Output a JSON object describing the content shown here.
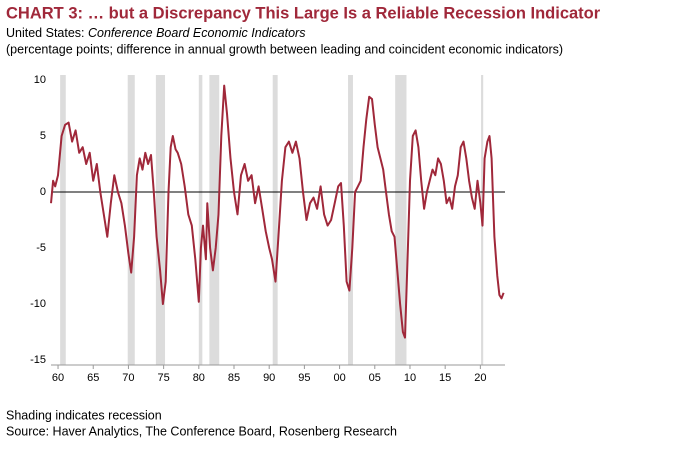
{
  "chart_data": {
    "type": "line",
    "title": "CHART 3: … but a Discrepancy This Large Is a Reliable Recession Indicator",
    "subtitle": "United States:",
    "subtitle_italic": "Conference Board Economic Indicators",
    "unit_note": "(percentage points; difference in annual growth between leading and coincident economic indicators)",
    "notes": [
      "Shading indicates recession",
      "Source: Haver Analytics, The Conference Board, Rosenberg Research"
    ],
    "recession_color": "#dcdcdc",
    "recessions": [
      [
        1960.3,
        1961.1
      ],
      [
        1969.9,
        1970.9
      ],
      [
        1973.9,
        1975.2
      ],
      [
        1980.0,
        1980.5
      ],
      [
        1981.5,
        1982.9
      ],
      [
        1990.5,
        1991.2
      ],
      [
        2001.2,
        2001.9
      ],
      [
        2007.9,
        2009.5
      ],
      [
        2020.1,
        2020.4
      ]
    ],
    "xlim": [
      1959,
      2023.5
    ],
    "xticks": [
      {
        "value": 1960,
        "label": "60"
      },
      {
        "value": 1965,
        "label": "65"
      },
      {
        "value": 1970,
        "label": "70"
      },
      {
        "value": 1975,
        "label": "75"
      },
      {
        "value": 1980,
        "label": "80"
      },
      {
        "value": 1985,
        "label": "85"
      },
      {
        "value": 1990,
        "label": "90"
      },
      {
        "value": 1995,
        "label": "95"
      },
      {
        "value": 2000,
        "label": "00"
      },
      {
        "value": 2005,
        "label": "05"
      },
      {
        "value": 2010,
        "label": "10"
      },
      {
        "value": 2015,
        "label": "15"
      },
      {
        "value": 2020,
        "label": "20"
      }
    ],
    "ylim": [
      -15,
      10
    ],
    "yticks": [
      10,
      5,
      0,
      -5,
      -10,
      -15
    ],
    "zero_line": true,
    "series": [
      {
        "color": "#a0283a",
        "x": [
          1959.0,
          1959.3,
          1959.6,
          1960.0,
          1960.5,
          1961.0,
          1961.5,
          1962.0,
          1962.5,
          1963.0,
          1963.5,
          1964.0,
          1964.5,
          1965.0,
          1965.5,
          1966.0,
          1966.5,
          1967.0,
          1967.5,
          1968.0,
          1968.5,
          1969.0,
          1969.5,
          1970.0,
          1970.4,
          1970.8,
          1971.2,
          1971.6,
          1972.0,
          1972.4,
          1972.8,
          1973.2,
          1973.6,
          1974.0,
          1974.5,
          1974.9,
          1975.3,
          1975.7,
          1976.0,
          1976.3,
          1976.7,
          1977.0,
          1977.5,
          1978.0,
          1978.5,
          1979.0,
          1979.5,
          1980.0,
          1980.3,
          1980.6,
          1981.0,
          1981.2,
          1981.6,
          1982.0,
          1982.4,
          1982.8,
          1983.2,
          1983.6,
          1984.0,
          1984.5,
          1985.0,
          1985.5,
          1986.0,
          1986.5,
          1987.0,
          1987.5,
          1988.0,
          1988.5,
          1989.0,
          1989.5,
          1990.0,
          1990.4,
          1990.9,
          1991.3,
          1991.8,
          1992.3,
          1992.8,
          1993.3,
          1993.8,
          1994.3,
          1994.8,
          1995.3,
          1995.8,
          1996.3,
          1996.8,
          1997.3,
          1997.8,
          1998.3,
          1998.8,
          1999.3,
          1999.8,
          2000.2,
          2000.6,
          2001.0,
          2001.4,
          2001.8,
          2002.2,
          2002.6,
          2003.0,
          2003.4,
          2003.8,
          2004.2,
          2004.6,
          2005.0,
          2005.4,
          2005.8,
          2006.2,
          2006.6,
          2007.0,
          2007.4,
          2007.8,
          2008.2,
          2008.6,
          2009.0,
          2009.3,
          2009.7,
          2010.0,
          2010.4,
          2010.8,
          2011.2,
          2011.6,
          2012.0,
          2012.4,
          2012.8,
          2013.2,
          2013.6,
          2014.0,
          2014.4,
          2014.8,
          2015.2,
          2015.6,
          2016.0,
          2016.4,
          2016.8,
          2017.2,
          2017.6,
          2018.0,
          2018.4,
          2018.8,
          2019.2,
          2019.6,
          2020.0,
          2020.3,
          2020.6,
          2021.0,
          2021.3,
          2021.6,
          2022.0,
          2022.4,
          2022.7,
          2023.0,
          2023.3
        ],
        "values": [
          -1,
          1,
          0.5,
          1.5,
          5,
          6,
          6.2,
          4.5,
          5.5,
          3.5,
          4,
          2.5,
          3.5,
          1,
          2.5,
          0,
          -2,
          -4,
          -1,
          1.5,
          0,
          -1,
          -3,
          -5.5,
          -7.2,
          -4,
          1.5,
          3,
          2,
          3.5,
          2.5,
          3.3,
          0,
          -4,
          -7,
          -10,
          -8,
          0,
          4,
          5,
          3.8,
          3.5,
          2.5,
          0.5,
          -2,
          -3,
          -6,
          -9.8,
          -5,
          -3,
          -6,
          -1,
          -5,
          -7,
          -5,
          -2,
          5,
          9.5,
          7,
          3,
          0,
          -2,
          1.5,
          2.5,
          1,
          1.5,
          -1,
          0.5,
          -1.5,
          -3.5,
          -5,
          -6,
          -8,
          -4,
          1,
          4,
          4.5,
          3.5,
          4.5,
          3,
          0,
          -2.5,
          -1,
          -0.5,
          -1.5,
          0.5,
          -2,
          -3,
          -2.5,
          -1,
          0.5,
          0.8,
          -3,
          -8,
          -8.8,
          -5,
          0,
          0.5,
          1,
          4,
          6.5,
          8.5,
          8.3,
          6,
          4,
          3,
          2,
          0,
          -2,
          -3.5,
          -4,
          -7,
          -10,
          -12.5,
          -13,
          -5,
          1,
          5,
          5.5,
          4,
          1,
          -1.5,
          0,
          1,
          2,
          1.5,
          3,
          2.5,
          1,
          -1,
          -0.5,
          -1.5,
          0.5,
          1.5,
          4,
          4.5,
          3,
          1,
          -0.5,
          -1.5,
          1,
          -1,
          -3,
          3,
          4.5,
          5,
          3,
          -4,
          -7.5,
          -9.2,
          -9.5,
          -9
        ]
      }
    ]
  }
}
